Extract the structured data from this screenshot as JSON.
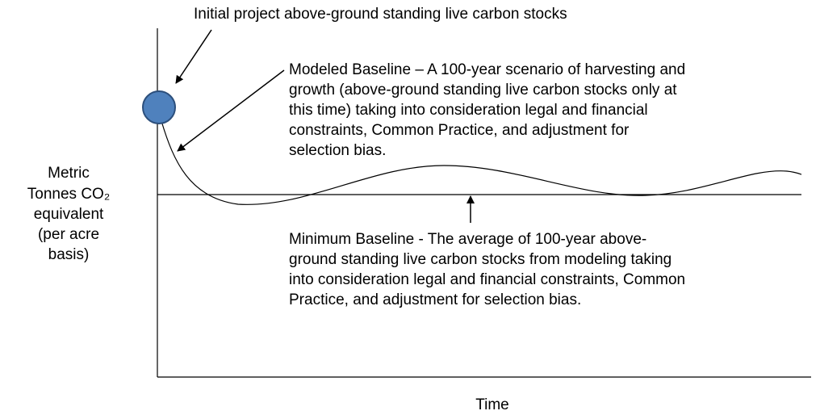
{
  "initial_label": "Initial project above-ground standing live carbon stocks",
  "modeled_baseline": {
    "lines": [
      "Modeled Baseline – A 100-year scenario of harvesting and",
      "growth (above-ground standing live carbon stocks only at",
      "this time) taking into consideration legal and financial",
      "constraints, Common Practice, and adjustment for",
      "selection bias."
    ]
  },
  "minimum_baseline": {
    "lines": [
      "Minimum Baseline - The average of 100-year above-",
      "ground standing live carbon stocks from modeling  taking",
      "into consideration legal and financial constraints, Common",
      "Practice, and adjustment for selection bias."
    ]
  },
  "y_axis_label": {
    "lines": [
      "Metric",
      "Tonnes CO₂",
      "equivalent",
      "(per acre",
      "basis)"
    ]
  },
  "x_axis_label": "Time"
}
